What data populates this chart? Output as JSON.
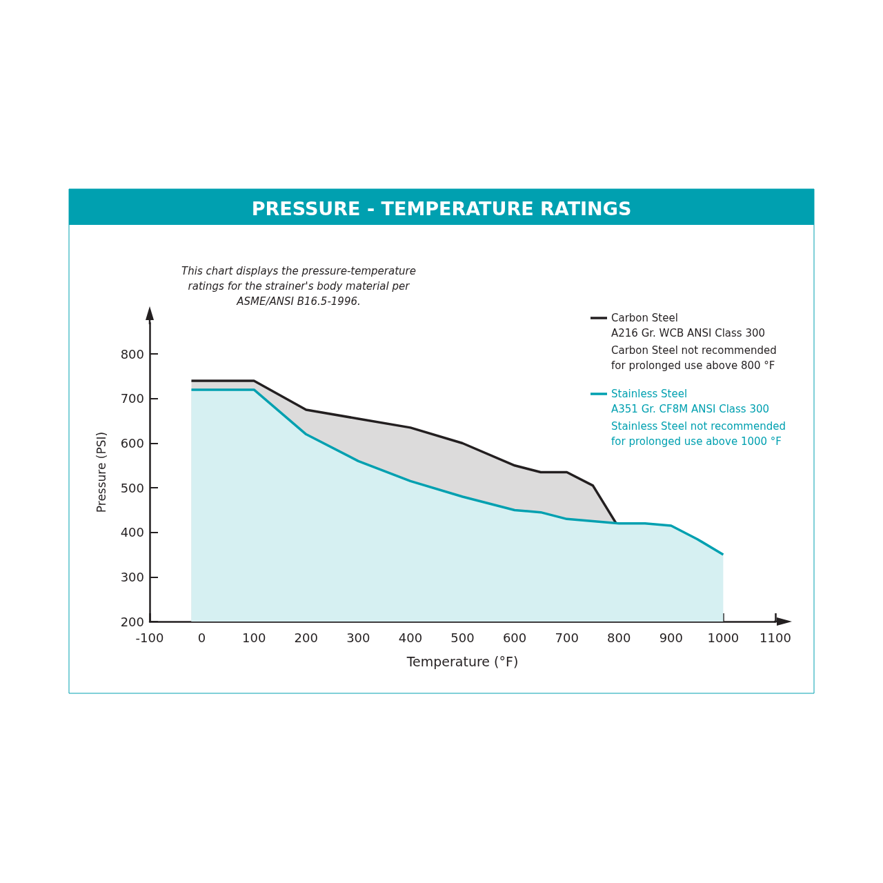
{
  "chart_data": {
    "type": "area",
    "title": "PRESSURE - TEMPERATURE RATINGS",
    "xlabel": "Temperature (°F)",
    "ylabel": "Pressure (PSI)",
    "annotations": [
      "This chart displays the pressure-temperature\nratings for the strainer's body material per\nASME/ANSI B16.5-1996.",
      "Carbon Steel not recommended\nfor prolonged use above 800 °F",
      "Stainless Steel not recommended\nfor prolonged use above 1000 °F"
    ],
    "series": [
      {
        "name": "Carbon Steel\nA216 Gr. WCB ANSI Class 300",
        "color": "#231f20",
        "x": [
          -20,
          100,
          200,
          300,
          400,
          500,
          600,
          650,
          700,
          750,
          800
        ],
        "values": [
          740,
          740,
          675,
          655,
          635,
          600,
          550,
          535,
          535,
          505,
          410
        ]
      },
      {
        "name": "Stainless Steel\nA351 Gr. CF8M ANSI Class 300",
        "color": "#00a0b0",
        "x": [
          -20,
          100,
          200,
          300,
          400,
          500,
          600,
          650,
          700,
          750,
          800,
          850,
          900,
          950,
          1000
        ],
        "values": [
          720,
          720,
          620,
          560,
          515,
          480,
          450,
          445,
          430,
          425,
          420,
          420,
          415,
          385,
          350
        ]
      }
    ],
    "xlim": [
      -100,
      1100
    ],
    "xticks": [
      -100,
      0,
      100,
      200,
      300,
      400,
      500,
      600,
      700,
      800,
      900,
      1000,
      1100
    ],
    "ylim": [
      200,
      870
    ],
    "yticks": [
      200,
      300,
      400,
      500,
      600,
      700,
      800
    ],
    "grid": false,
    "legend": "top right",
    "marker": "none",
    "line_style": "solid"
  }
}
